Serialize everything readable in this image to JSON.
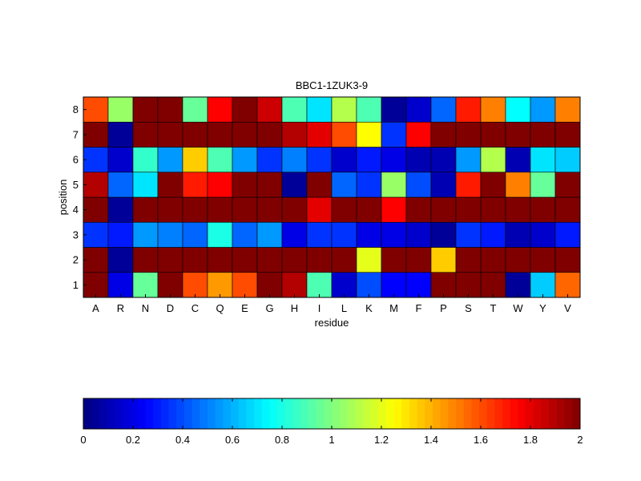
{
  "chart_data": {
    "type": "heatmap",
    "title": "BBC1-1ZUK3-9",
    "xlabel": "residue",
    "ylabel": "position",
    "x_categories": [
      "A",
      "R",
      "N",
      "D",
      "C",
      "Q",
      "E",
      "G",
      "H",
      "I",
      "L",
      "K",
      "M",
      "F",
      "P",
      "S",
      "T",
      "W",
      "Y",
      "V"
    ],
    "y_categories": [
      "1",
      "2",
      "3",
      "4",
      "5",
      "6",
      "7",
      "8"
    ],
    "clim": [
      0,
      2
    ],
    "colormap": "jet",
    "values": [
      [
        2.0,
        0.2,
        0.95,
        2.0,
        1.6,
        1.45,
        1.6,
        2.0,
        1.9,
        0.9,
        0.15,
        0.4,
        0.25,
        0.25,
        2.0,
        2.0,
        2.0,
        0.05,
        0.65,
        1.55
      ],
      [
        2.0,
        0.05,
        2.0,
        2.0,
        2.0,
        2.0,
        2.0,
        2.0,
        2.0,
        2.0,
        2.0,
        1.2,
        2.0,
        2.0,
        1.35,
        2.0,
        2.0,
        2.0,
        2.0,
        2.0
      ],
      [
        0.35,
        0.3,
        0.55,
        0.5,
        0.45,
        0.8,
        0.45,
        0.55,
        0.2,
        0.35,
        0.35,
        0.2,
        0.2,
        0.15,
        0.05,
        0.35,
        0.3,
        0.1,
        0.15,
        0.3
      ],
      [
        2.0,
        0.05,
        2.0,
        2.0,
        2.0,
        2.0,
        2.0,
        2.0,
        2.0,
        1.8,
        2.0,
        2.0,
        1.75,
        2.0,
        2.0,
        2.0,
        2.0,
        2.0,
        2.0,
        2.0
      ],
      [
        1.9,
        0.45,
        0.7,
        2.0,
        1.7,
        1.75,
        2.0,
        2.0,
        0.05,
        2.0,
        0.45,
        0.35,
        1.05,
        0.4,
        0.1,
        1.7,
        2.0,
        1.5,
        0.95,
        2.0
      ],
      [
        0.35,
        0.15,
        0.85,
        0.55,
        1.35,
        0.9,
        0.55,
        0.35,
        0.5,
        0.35,
        0.15,
        0.3,
        0.2,
        0.1,
        0.1,
        0.55,
        1.1,
        0.1,
        0.7,
        0.65
      ],
      [
        2.0,
        0.05,
        2.0,
        2.0,
        2.0,
        2.0,
        2.0,
        2.0,
        1.9,
        1.8,
        1.6,
        1.25,
        0.35,
        1.75,
        2.0,
        2.0,
        2.0,
        2.0,
        2.0,
        2.0
      ],
      [
        1.6,
        1.05,
        2.0,
        2.0,
        0.95,
        1.75,
        2.0,
        1.85,
        0.9,
        0.7,
        1.1,
        0.9,
        0.05,
        0.15,
        0.45,
        1.7,
        1.5,
        0.75,
        0.55,
        1.5
      ]
    ],
    "colorbar": {
      "ticks": [
        "0",
        "0.2",
        "0.4",
        "0.6",
        "0.8",
        "1",
        "1.2",
        "1.4",
        "1.6",
        "1.8",
        "2"
      ],
      "orientation": "horizontal",
      "placement": "bottom"
    }
  }
}
